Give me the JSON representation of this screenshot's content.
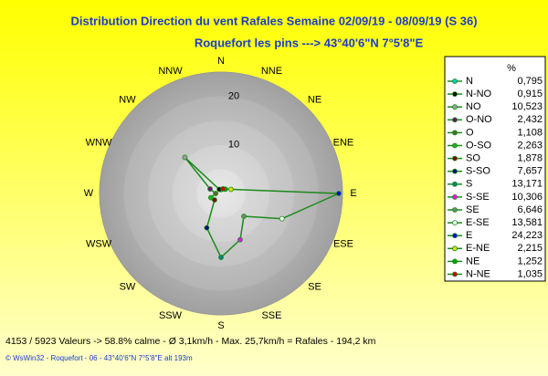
{
  "chart_data": {
    "type": "radar",
    "title": "Distribution Direction du vent Rafales  Semaine 02/09/19 - 08/09/19 (S 36)",
    "subtitle": "Roquefort les pins    --->  43°40'6\"N 7°5'8\"E",
    "categories": [
      "N",
      "NNE",
      "NE",
      "ENE",
      "E",
      "ESE",
      "SE",
      "SSE",
      "S",
      "SSW",
      "SW",
      "WSW",
      "W",
      "WNW",
      "NW",
      "NNW"
    ],
    "legend_title": "%",
    "directions": [
      "N",
      "N-NO",
      "NO",
      "O-NO",
      "O",
      "O-SO",
      "SO",
      "S-SO",
      "S",
      "S-SE",
      "SE",
      "E-SE",
      "E",
      "E-NE",
      "NE",
      "N-NE"
    ],
    "values": [
      0.795,
      0.915,
      10.523,
      2.432,
      1.108,
      2.263,
      1.878,
      7.657,
      13.171,
      10.306,
      6.646,
      13.581,
      24.223,
      2.215,
      1.252,
      1.035
    ],
    "value_labels": [
      "0,795",
      "0,915",
      "10,523",
      "2,432",
      "1,108",
      "2,263",
      "1,878",
      "7,657",
      "13,171",
      "10,306",
      "6,646",
      "13,581",
      "24,223",
      "2,215",
      "1,252",
      "1,035"
    ],
    "colors": [
      "#00c8c8",
      "#000000",
      "#a0a0a0",
      "#800080",
      "#556b2f",
      "#20b020",
      "#8b0000",
      "#000080",
      "#008080",
      "#ff00ff",
      "#6b8e6b",
      "#ffffff",
      "#0000ff",
      "#e0e000",
      "#00a000",
      "#d00000"
    ],
    "line_color": "#1a8a1a",
    "ylim": [
      0,
      25
    ],
    "yticks": [
      10,
      20
    ],
    "footer": "4153 / 5923 Valeurs  -> 58.8% calme  -  Ø 3,1km/h  -  Max. 25,7km/h = Rafales  -  194,2 km",
    "copyright": "© WsWin32  -  Roquefort - 06  -  43°40'6\"N 7°5'8\"E alt 193m"
  }
}
